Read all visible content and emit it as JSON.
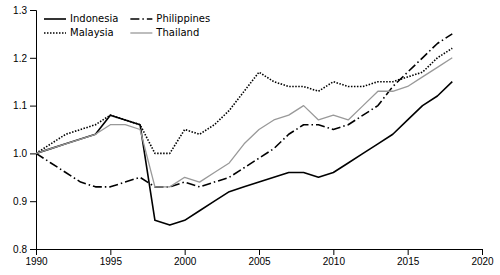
{
  "chart_data": {
    "type": "line",
    "x": [
      1990,
      1991,
      1992,
      1993,
      1994,
      1995,
      1996,
      1997,
      1998,
      1999,
      2000,
      2001,
      2002,
      2003,
      2004,
      2005,
      2006,
      2007,
      2008,
      2009,
      2010,
      2011,
      2012,
      2013,
      2014,
      2015,
      2016,
      2017,
      2018
    ],
    "series": [
      {
        "name": "Indonesia",
        "color": "#000000",
        "line_style": "solid",
        "values": [
          1.0,
          1.01,
          1.02,
          1.03,
          1.04,
          1.08,
          1.07,
          1.06,
          0.86,
          0.85,
          0.86,
          0.88,
          0.9,
          0.92,
          0.93,
          0.94,
          0.95,
          0.96,
          0.96,
          0.95,
          0.96,
          0.98,
          1.0,
          1.02,
          1.04,
          1.07,
          1.1,
          1.12,
          1.15
        ]
      },
      {
        "name": "Malaysia",
        "color": "#000000",
        "line_style": "dotted",
        "values": [
          1.0,
          1.02,
          1.04,
          1.05,
          1.06,
          1.08,
          1.07,
          1.06,
          1.0,
          1.0,
          1.05,
          1.04,
          1.06,
          1.09,
          1.13,
          1.17,
          1.15,
          1.14,
          1.14,
          1.13,
          1.15,
          1.14,
          1.14,
          1.15,
          1.15,
          1.16,
          1.17,
          1.2,
          1.22
        ]
      },
      {
        "name": "Philippines",
        "color": "#000000",
        "line_style": "dashdot",
        "values": [
          1.0,
          0.98,
          0.96,
          0.94,
          0.93,
          0.93,
          0.94,
          0.95,
          0.93,
          0.93,
          0.94,
          0.93,
          0.94,
          0.95,
          0.97,
          0.99,
          1.01,
          1.04,
          1.06,
          1.06,
          1.05,
          1.06,
          1.08,
          1.1,
          1.14,
          1.17,
          1.2,
          1.23,
          1.25
        ]
      },
      {
        "name": "Thailand",
        "color": "#999999",
        "line_style": "solid",
        "values": [
          1.0,
          1.01,
          1.02,
          1.03,
          1.04,
          1.06,
          1.06,
          1.05,
          0.93,
          0.93,
          0.95,
          0.94,
          0.96,
          0.98,
          1.02,
          1.05,
          1.07,
          1.08,
          1.1,
          1.07,
          1.08,
          1.07,
          1.1,
          1.13,
          1.13,
          1.14,
          1.16,
          1.18,
          1.2
        ]
      }
    ],
    "xlim": [
      1990,
      2020
    ],
    "xticks": [
      1990,
      1995,
      2000,
      2005,
      2010,
      2015,
      2020
    ],
    "ylim": [
      0.8,
      1.3
    ],
    "yticks": [
      0.8,
      0.9,
      {
        "value": 1.0,
        "label": "1.0"
      },
      1.1,
      1.2,
      1.3
    ],
    "grid": false,
    "legend": "upper left"
  }
}
